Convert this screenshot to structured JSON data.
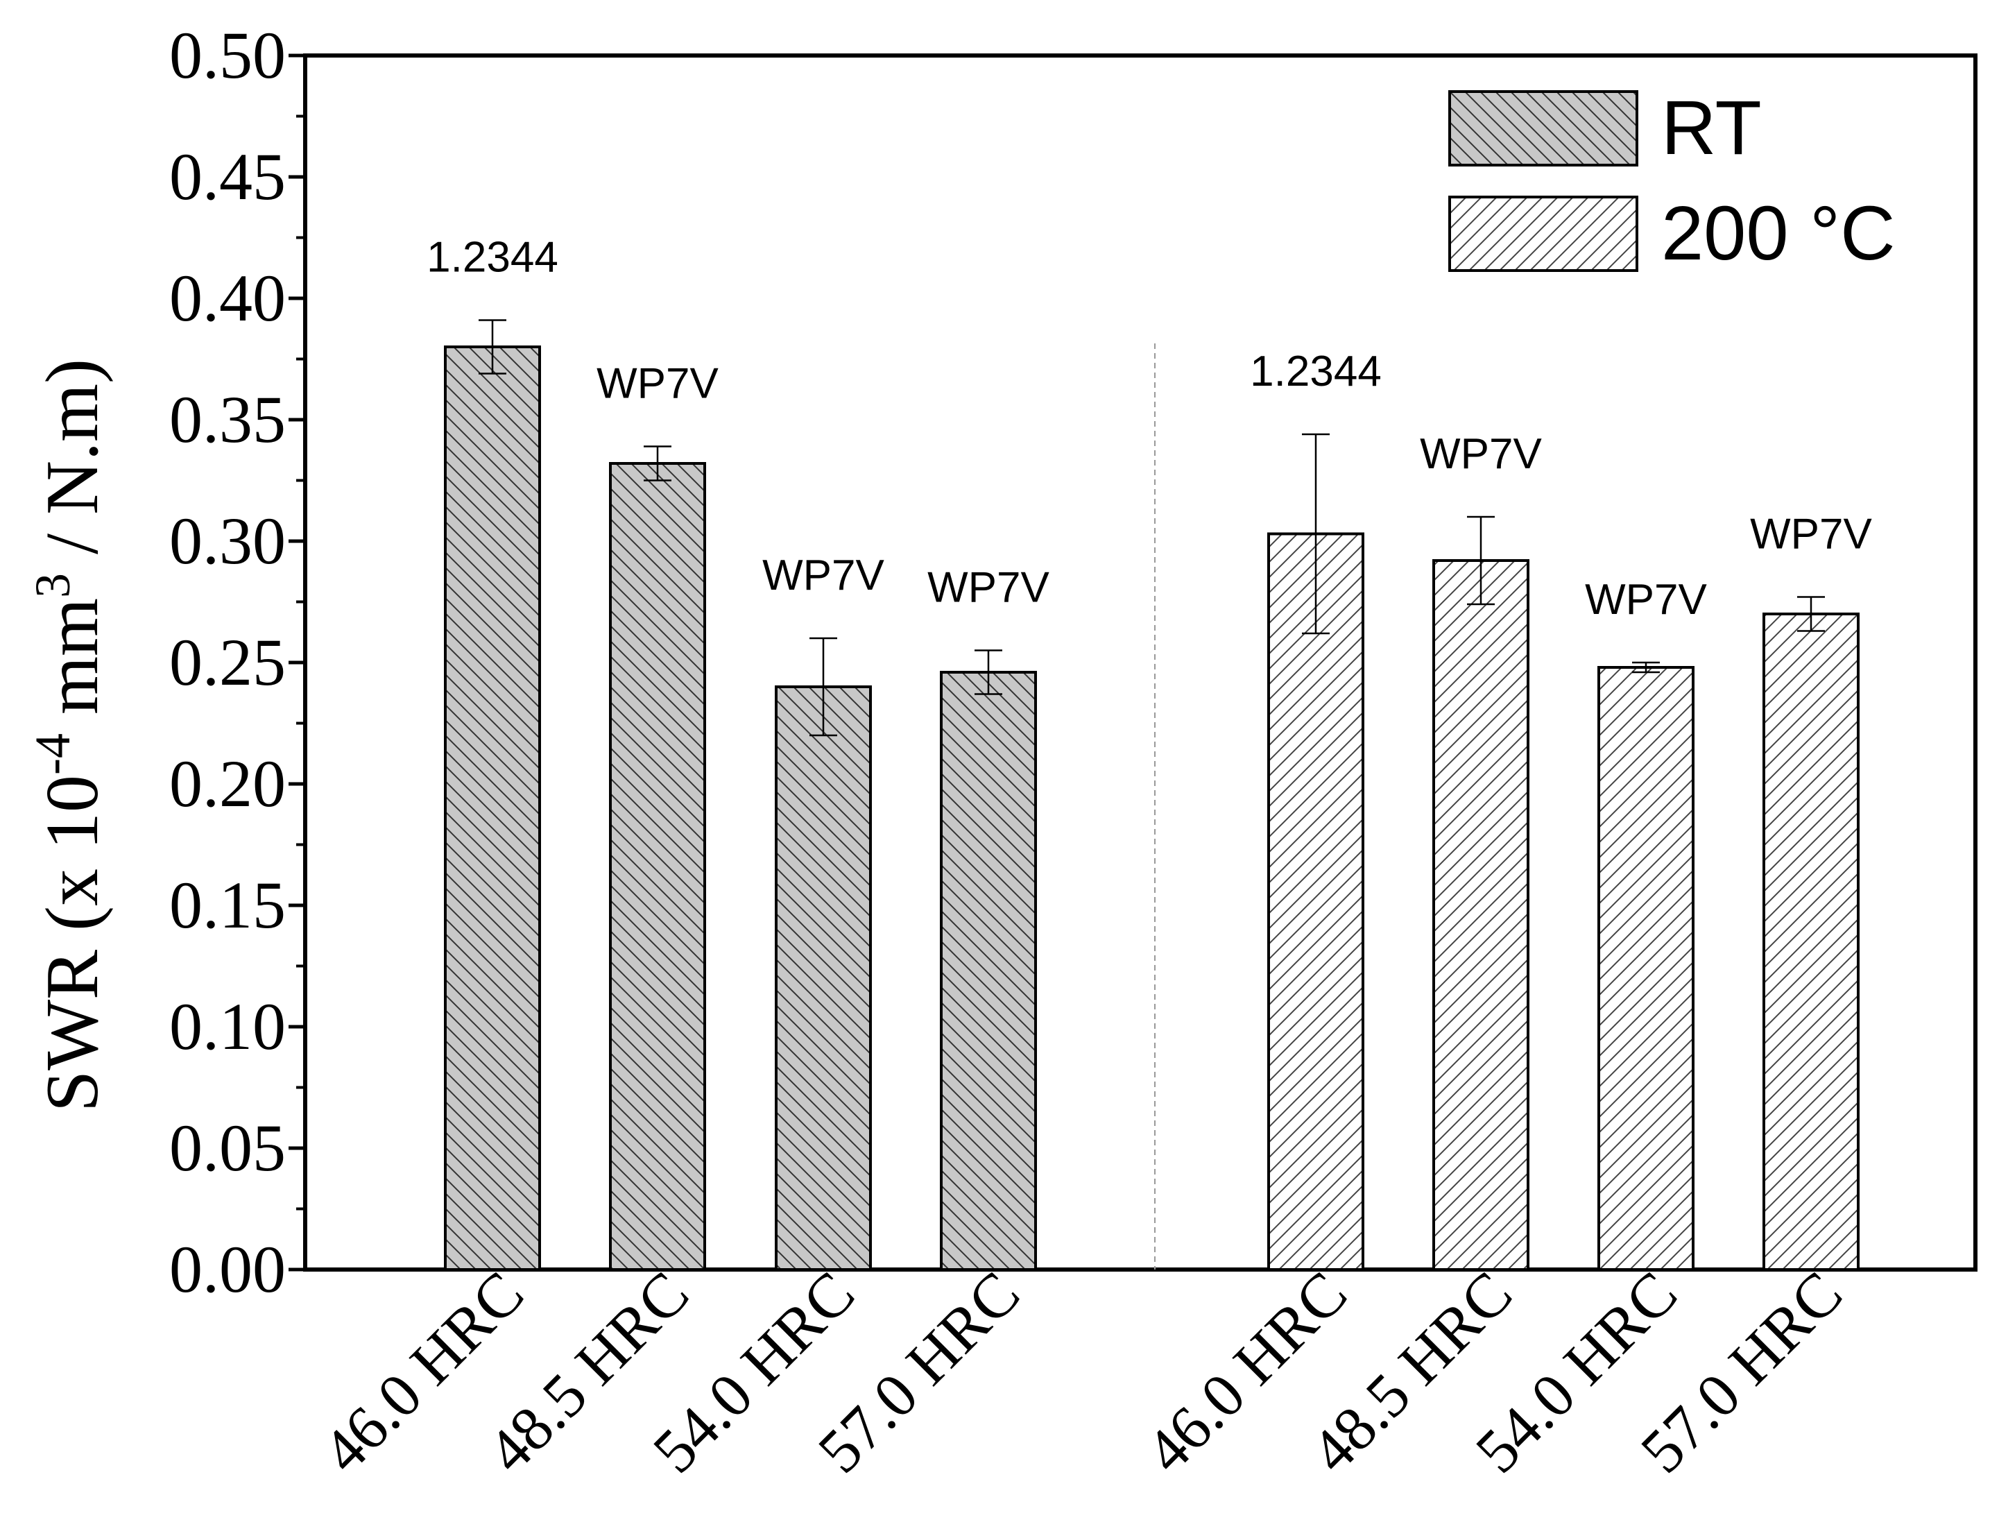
{
  "chart_data": {
    "type": "bar",
    "ylabel": {
      "prefix": "SWR (x 10",
      "exp": "-4",
      "mid": " mm",
      "exp2": "3",
      "suffix": " / N.m)"
    },
    "ylim": [
      0,
      0.5
    ],
    "yticks": [
      "0.00",
      "0.05",
      "0.10",
      "0.15",
      "0.20",
      "0.25",
      "0.30",
      "0.35",
      "0.40",
      "0.45",
      "0.50"
    ],
    "grid": false,
    "legend_position": "top-right",
    "series": [
      {
        "name": "RT",
        "pattern": "backslash-hatch",
        "fill": "#c8c8c8",
        "categories": [
          "46.0 HRC",
          "48.5 HRC",
          "54.0 HRC",
          "57.0 HRC"
        ],
        "values": [
          0.38,
          0.332,
          0.24,
          0.246
        ],
        "errors": [
          0.011,
          0.007,
          0.02,
          0.009
        ],
        "bar_labels": [
          "1.2344",
          "WP7V",
          "WP7V",
          "WP7V"
        ]
      },
      {
        "name": "200 °C",
        "pattern": "slash-hatch",
        "fill": "#ffffff",
        "categories": [
          "46.0 HRC",
          "48.5 HRC",
          "54.0 HRC",
          "57.0 HRC"
        ],
        "values": [
          0.303,
          0.292,
          0.248,
          0.27
        ],
        "errors": [
          0.041,
          0.018,
          0.002,
          0.007
        ],
        "bar_labels": [
          "1.2344",
          "WP7V",
          "WP7V",
          "WP7V"
        ]
      }
    ]
  }
}
